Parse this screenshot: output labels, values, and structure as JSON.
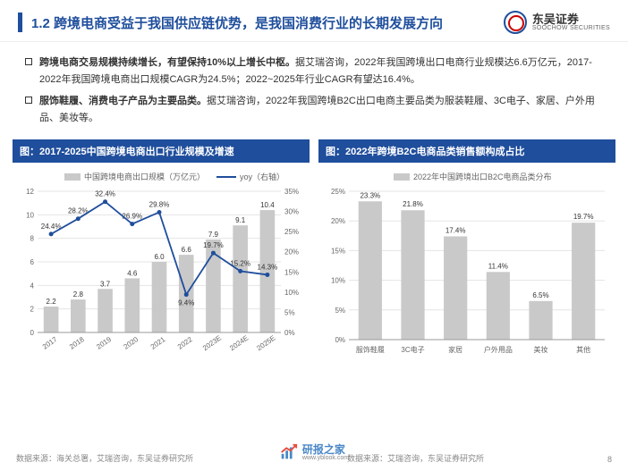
{
  "header": {
    "title": "1.2 跨境电商受益于我国供应链优势，是我国消费行业的长期发展方向",
    "logo_cn": "东吴证券",
    "logo_en": "SOOCHOW SECURITIES"
  },
  "bullets": [
    {
      "bold": "跨境电商交易规模持续增长，有望保持10%以上增长中枢。",
      "rest": "据艾瑞咨询，2022年我国跨境出口电商行业规模达6.6万亿元，2017-2022年我国跨境电商出口规模CAGR为24.5%；2022~2025年行业CAGR有望达16.4%。"
    },
    {
      "bold": "服饰鞋履、消费电子产品为主要品类。",
      "rest": "据艾瑞咨询，2022年我国跨境B2C出口电商主要品类为服装鞋履、3C电子、家居、户外用品、美妆等。"
    }
  ],
  "chart1": {
    "title": "图：2017-2025中国跨境电商出口行业规模及增速",
    "legend_bar": "中国跨境电商出口规模（万亿元）",
    "legend_line": "yoy（右轴）",
    "categories": [
      "2017",
      "2018",
      "2019",
      "2020",
      "2021",
      "2022",
      "2023E",
      "2024E",
      "2025E"
    ],
    "bars": [
      2.2,
      2.8,
      3.7,
      4.6,
      6.0,
      6.6,
      7.9,
      9.1,
      10.4
    ],
    "bar_labels": [
      "2.2",
      "2.8",
      "3.7",
      "4.6",
      "6.0",
      "6.6",
      "7.9",
      "9.1",
      "10.4"
    ],
    "line": [
      24.4,
      28.2,
      32.4,
      26.9,
      29.8,
      9.4,
      19.7,
      15.2,
      14.3
    ],
    "line_labels": [
      "24.4%",
      "28.2%",
      "32.4%",
      "26.9%",
      "29.8%",
      "9.4%",
      "19.7%",
      "15.2%",
      "14.3%"
    ],
    "y_left_max": 12,
    "y_left_step": 2,
    "y_right_max": 35,
    "y_right_step": 5,
    "bar_color": "#c9c9c9",
    "line_color": "#1f4e9c",
    "grid_color": "#e5e5e5",
    "bg": "#ffffff"
  },
  "chart2": {
    "title": "图：2022年跨境B2C电商品类销售额构成占比",
    "legend": "2022年中国跨境出口B2C电商品类分布",
    "categories": [
      "服饰鞋履",
      "3C电子",
      "家居",
      "户外用品",
      "美妆",
      "其他"
    ],
    "values": [
      23.3,
      21.8,
      17.4,
      11.4,
      6.5,
      19.7
    ],
    "value_labels": [
      "23.3%",
      "21.8%",
      "17.4%",
      "11.4%",
      "6.5%",
      "19.7%"
    ],
    "y_max": 25,
    "y_step": 5,
    "bar_color": "#c9c9c9",
    "grid_color": "#e5e5e5",
    "bg": "#ffffff"
  },
  "footer": {
    "source_left": "数据来源：海关总署，艾瑞咨询，东吴证券研究所",
    "source_right_a": "数据来源：艾瑞咨询，东吴证券研究所",
    "page": "8",
    "watermark": "研报之家",
    "watermark_url": "www.yblook.com"
  }
}
